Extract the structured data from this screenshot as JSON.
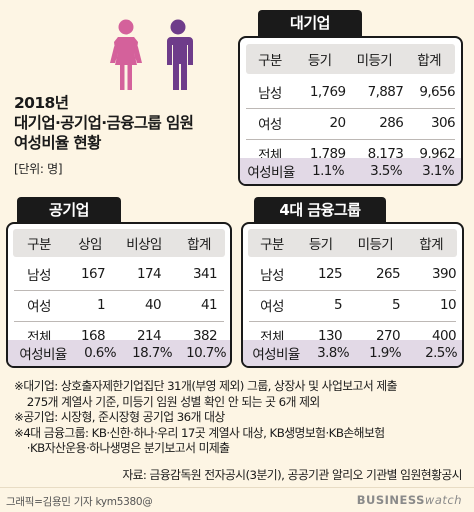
{
  "title": {
    "line1": "2018년",
    "line2": "대기업·공기업·금융그룹 임원",
    "line3": "여성비율 현황"
  },
  "unit_note": "[단위: 명]",
  "colors": {
    "background": "#fdf5e4",
    "ratio_row": "#e2d9e6",
    "header_row": "#e6e4e2",
    "icon_pink": "#d4619b",
    "icon_purple": "#6e3c8a"
  },
  "icons": [
    "woman-icon",
    "man-icon"
  ],
  "tables": {
    "large": {
      "tab": "대기업",
      "header": [
        "구분",
        "등기",
        "미등기",
        "합계"
      ],
      "rows": [
        [
          "남성",
          "1,769",
          "7,887",
          "9,656"
        ],
        [
          "여성",
          "20",
          "286",
          "306"
        ],
        [
          "전체",
          "1,789",
          "8,173",
          "9,962"
        ]
      ],
      "ratio": [
        "여성비율",
        "1.1%",
        "3.5%",
        "3.1%"
      ]
    },
    "public": {
      "tab": "공기업",
      "header": [
        "구분",
        "상임",
        "비상임",
        "합계"
      ],
      "rows": [
        [
          "남성",
          "167",
          "174",
          "341"
        ],
        [
          "여성",
          "1",
          "40",
          "41"
        ],
        [
          "전체",
          "168",
          "214",
          "382"
        ]
      ],
      "ratio": [
        "여성비율",
        "0.6%",
        "18.7%",
        "10.7%"
      ]
    },
    "finance": {
      "tab": "4대 금융그룹",
      "header": [
        "구분",
        "등기",
        "미등기",
        "합계"
      ],
      "rows": [
        [
          "남성",
          "125",
          "265",
          "390"
        ],
        [
          "여성",
          "5",
          "5",
          "10"
        ],
        [
          "전체",
          "130",
          "270",
          "400"
        ]
      ],
      "ratio": [
        "여성비율",
        "3.8%",
        "1.9%",
        "2.5%"
      ]
    }
  },
  "notes": [
    "※대기업: 상호출자제한기업집단 31개(부영 제외) 그룹, 상장사 및 사업보고서 제출",
    "    275개 계열사 기준, 미등기 임원 성별 확인 안 되는 곳 6개 제외",
    "※공기업: 시장형, 준시장형 공기업 36개 대상",
    "※4대 금융그룹: KB·신한·하나·우리 17곳 계열사 대상, KB생명보험·KB손해보험",
    "    ·KB자산운용·하나생명은 분기보고서 미제출"
  ],
  "source": "자료: 금융감독원 전자공시(3분기), 공공기관 알리오 기관별 임원현황공시",
  "footer": {
    "credit": "그래픽=김용민 기자 kym5380@",
    "brand_main": "BUSINESS",
    "brand_sub": "watch"
  }
}
